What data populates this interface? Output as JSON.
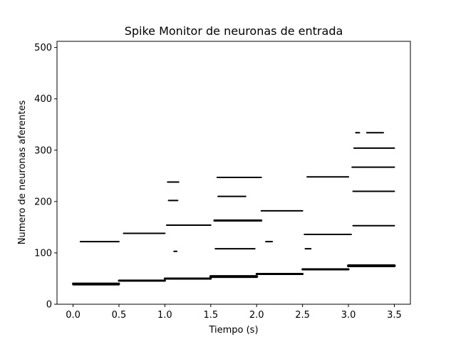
{
  "chart_data": {
    "type": "scatter",
    "title": "Spike Monitor de neuronas de entrada",
    "xlabel": "Tiempo (s)",
    "ylabel": "Numero de neuronas aferentes",
    "xlim": [
      -0.175,
      3.675
    ],
    "ylim": [
      0,
      512
    ],
    "xticks": [
      0.0,
      0.5,
      1.0,
      1.5,
      2.0,
      2.5,
      3.0,
      3.5
    ],
    "xtick_labels": [
      "0.0",
      "0.5",
      "1.0",
      "1.5",
      "2.0",
      "2.5",
      "3.0",
      "3.5"
    ],
    "yticks": [
      0,
      100,
      200,
      300,
      400,
      500
    ],
    "ytick_labels": [
      "0",
      "100",
      "200",
      "300",
      "400",
      "500"
    ],
    "grid": false,
    "marker_color": "#000000",
    "spike_trains": [
      {
        "neuron": 40,
        "t_start": 0.0,
        "t_end": 0.5,
        "thickness": 3
      },
      {
        "neuron": 38,
        "t_start": 0.0,
        "t_end": 0.5,
        "thickness": 2
      },
      {
        "neuron": 122,
        "t_start": 0.08,
        "t_end": 0.5,
        "thickness": 2
      },
      {
        "neuron": 46,
        "t_start": 0.5,
        "t_end": 1.0,
        "thickness": 3
      },
      {
        "neuron": 138,
        "t_start": 0.55,
        "t_end": 1.0,
        "thickness": 2
      },
      {
        "neuron": 50,
        "t_start": 1.0,
        "t_end": 1.5,
        "thickness": 3
      },
      {
        "neuron": 154,
        "t_start": 1.02,
        "t_end": 1.5,
        "thickness": 2
      },
      {
        "neuron": 238,
        "t_start": 1.03,
        "t_end": 1.15,
        "thickness": 2
      },
      {
        "neuron": 202,
        "t_start": 1.04,
        "t_end": 1.14,
        "thickness": 2
      },
      {
        "neuron": 103,
        "t_start": 1.1,
        "t_end": 1.13,
        "thickness": 2
      },
      {
        "neuron": 54,
        "t_start": 1.5,
        "t_end": 2.0,
        "thickness": 4
      },
      {
        "neuron": 163,
        "t_start": 1.54,
        "t_end": 2.05,
        "thickness": 3
      },
      {
        "neuron": 247,
        "t_start": 1.57,
        "t_end": 2.05,
        "thickness": 2
      },
      {
        "neuron": 210,
        "t_start": 1.58,
        "t_end": 1.88,
        "thickness": 2
      },
      {
        "neuron": 108,
        "t_start": 1.55,
        "t_end": 1.98,
        "thickness": 2
      },
      {
        "neuron": 59,
        "t_start": 2.0,
        "t_end": 2.5,
        "thickness": 3
      },
      {
        "neuron": 182,
        "t_start": 2.05,
        "t_end": 2.5,
        "thickness": 2
      },
      {
        "neuron": 122,
        "t_start": 2.1,
        "t_end": 2.17,
        "thickness": 2
      },
      {
        "neuron": 68,
        "t_start": 2.5,
        "t_end": 3.0,
        "thickness": 3
      },
      {
        "neuron": 136,
        "t_start": 2.52,
        "t_end": 3.03,
        "thickness": 2
      },
      {
        "neuron": 248,
        "t_start": 2.55,
        "t_end": 3.0,
        "thickness": 2
      },
      {
        "neuron": 108,
        "t_start": 2.53,
        "t_end": 2.59,
        "thickness": 2
      },
      {
        "neuron": 75,
        "t_start": 3.0,
        "t_end": 3.5,
        "thickness": 4
      },
      {
        "neuron": 153,
        "t_start": 3.05,
        "t_end": 3.5,
        "thickness": 2
      },
      {
        "neuron": 220,
        "t_start": 3.05,
        "t_end": 3.5,
        "thickness": 2
      },
      {
        "neuron": 267,
        "t_start": 3.04,
        "t_end": 3.5,
        "thickness": 2
      },
      {
        "neuron": 304,
        "t_start": 3.06,
        "t_end": 3.5,
        "thickness": 2
      },
      {
        "neuron": 334,
        "t_start": 3.2,
        "t_end": 3.38,
        "thickness": 2
      },
      {
        "neuron": 334,
        "t_start": 3.08,
        "t_end": 3.12,
        "thickness": 2
      }
    ]
  }
}
